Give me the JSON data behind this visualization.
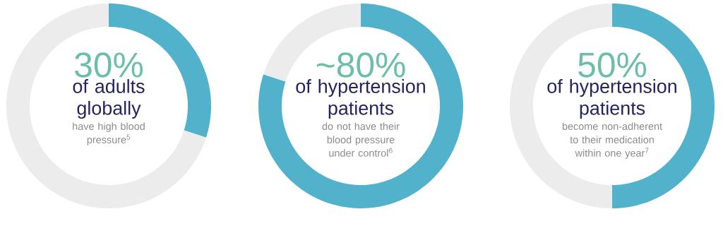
{
  "chart_data": [
    {
      "type": "donut",
      "title": "30%",
      "subtitle": "of adults globally",
      "annotations": [
        "have high blood pressure$^{5}$"
      ],
      "categories": [
        null,
        null
      ],
      "values": [
        30,
        70
      ],
      "colors": [
        "#52b2cc",
        "#ececec"
      ]
    },
    {
      "type": "donut",
      "title": "~80%",
      "subtitle": "of hypertension patients",
      "annotations": [
        "do not have their blood pressure under control$^{6}$"
      ],
      "categories": [
        null,
        null
      ],
      "values": [
        80,
        20
      ],
      "colors": [
        "#52b2cc",
        "#ececec"
      ]
    },
    {
      "type": "donut",
      "title": "50%",
      "subtitle": "of hypertension patients",
      "annotations": [
        "become non-adherent to their medication within one year$^{7}$"
      ],
      "categories": [
        null,
        null
      ],
      "values": [
        50,
        50
      ],
      "colors": [
        "#52b2cc",
        "#ececec"
      ]
    }
  ]
}
